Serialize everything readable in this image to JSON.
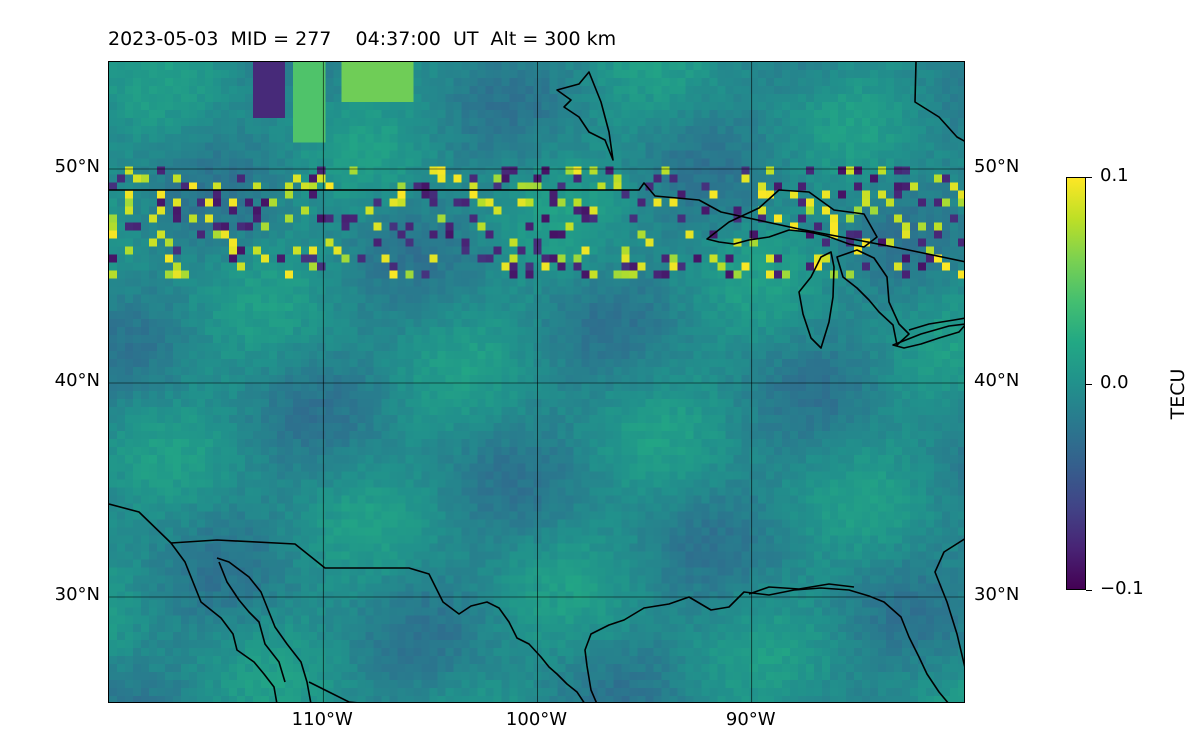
{
  "title": "2023-05-03  MID = 277    04:37:00  UT  Alt = 300 km",
  "map": {
    "extent": {
      "lon_min": -120,
      "lon_max": -80,
      "lat_min": 25,
      "lat_max": 55
    },
    "gridlines": {
      "lons": [
        -110,
        -100,
        -90
      ],
      "lats": [
        30,
        40,
        50
      ]
    },
    "lat_labels": [
      {
        "lat": 50,
        "text": "50°N"
      },
      {
        "lat": 40,
        "text": "40°N"
      },
      {
        "lat": 30,
        "text": "30°N"
      }
    ],
    "lon_labels": [
      {
        "lon": -110,
        "text": "110°W"
      },
      {
        "lon": -100,
        "text": "100°W"
      },
      {
        "lon": -90,
        "text": "90°W"
      }
    ],
    "field": "TEC perturbation",
    "colormap": "viridis",
    "coastline_color": "#000000"
  },
  "colorbar": {
    "label": "TECU",
    "vmin": -0.1,
    "vmax": 0.1,
    "ticks": [
      {
        "value": 0.1,
        "text": "0.1"
      },
      {
        "value": 0.0,
        "text": "0.0"
      },
      {
        "value": -0.1,
        "text": "−0.1"
      }
    ]
  }
}
